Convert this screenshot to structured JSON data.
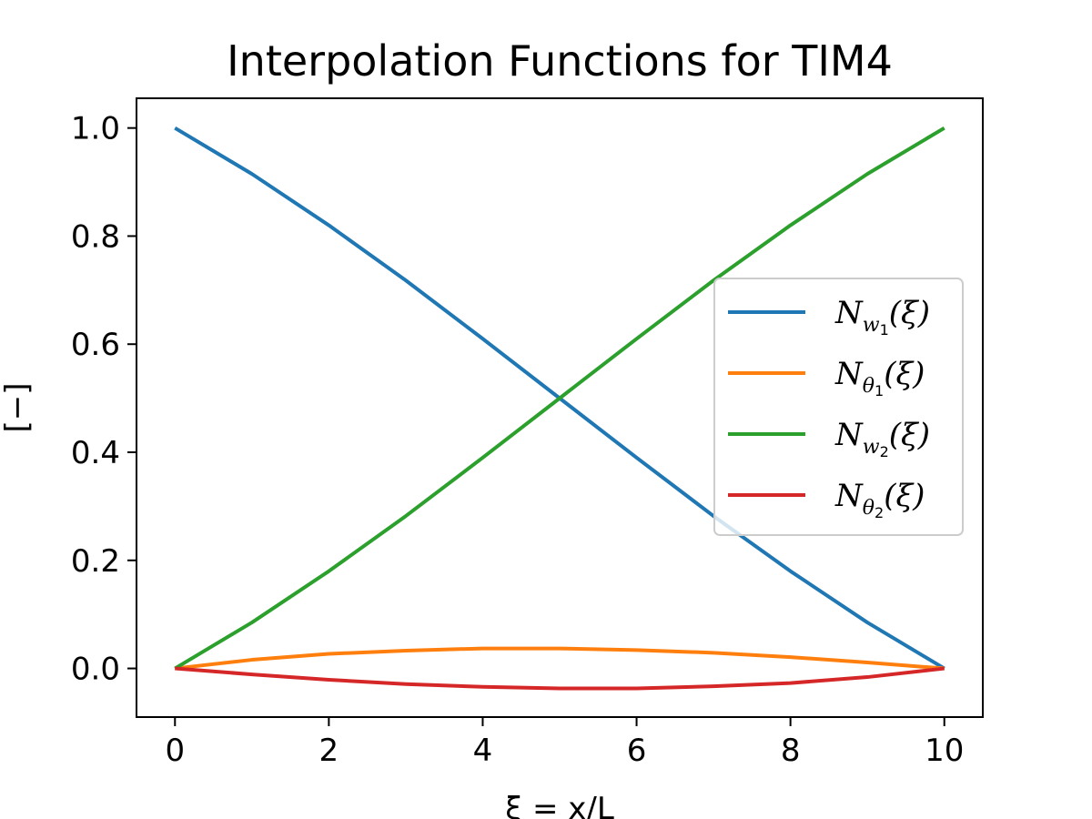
{
  "chart_data": {
    "type": "line",
    "title": "Interpolation Functions for TIM4",
    "xlabel": "ξ = x/L",
    "ylabel": "[−]",
    "xlim": [
      -0.5,
      10.5
    ],
    "ylim": [
      -0.09,
      1.055
    ],
    "xticks": [
      0,
      2,
      4,
      6,
      8,
      10
    ],
    "xtick_labels": [
      "0",
      "2",
      "4",
      "6",
      "8",
      "10"
    ],
    "yticks": [
      0.0,
      0.2,
      0.4,
      0.6,
      0.8,
      1.0
    ],
    "ytick_labels": [
      "0.0",
      "0.2",
      "0.4",
      "0.6",
      "0.8",
      "1.0"
    ],
    "grid": false,
    "legend_position": "center-right",
    "x": [
      0,
      1,
      2,
      3,
      4,
      5,
      6,
      7,
      8,
      9,
      10
    ],
    "series": [
      {
        "name": "N_{w_1}(ξ)",
        "legend_main": "N",
        "legend_sub": "w",
        "legend_subsub": "1",
        "legend_tail": "(ξ)",
        "color": "#1f77b4",
        "values": [
          1.0,
          0.915,
          0.82,
          0.718,
          0.61,
          0.5,
          0.39,
          0.282,
          0.18,
          0.085,
          0.0
        ]
      },
      {
        "name": "N_{θ_1}(ξ)",
        "legend_main": "N",
        "legend_sub": "θ",
        "legend_subsub": "1",
        "legend_tail": "(ξ)",
        "color": "#ff7f0e",
        "values": [
          0.0,
          0.016,
          0.027,
          0.033,
          0.037,
          0.037,
          0.034,
          0.029,
          0.021,
          0.011,
          0.0
        ]
      },
      {
        "name": "N_{w_2}(ξ)",
        "legend_main": "N",
        "legend_sub": "w",
        "legend_subsub": "2",
        "legend_tail": "(ξ)",
        "color": "#2ca02c",
        "values": [
          0.0,
          0.085,
          0.18,
          0.282,
          0.39,
          0.5,
          0.61,
          0.718,
          0.82,
          0.915,
          1.0
        ]
      },
      {
        "name": "N_{θ_2}(ξ)",
        "legend_main": "N",
        "legend_sub": "θ",
        "legend_subsub": "2",
        "legend_tail": "(ξ)",
        "color": "#d62728",
        "values": [
          0.0,
          -0.011,
          -0.021,
          -0.029,
          -0.034,
          -0.037,
          -0.037,
          -0.033,
          -0.027,
          -0.016,
          0.0
        ]
      }
    ]
  }
}
